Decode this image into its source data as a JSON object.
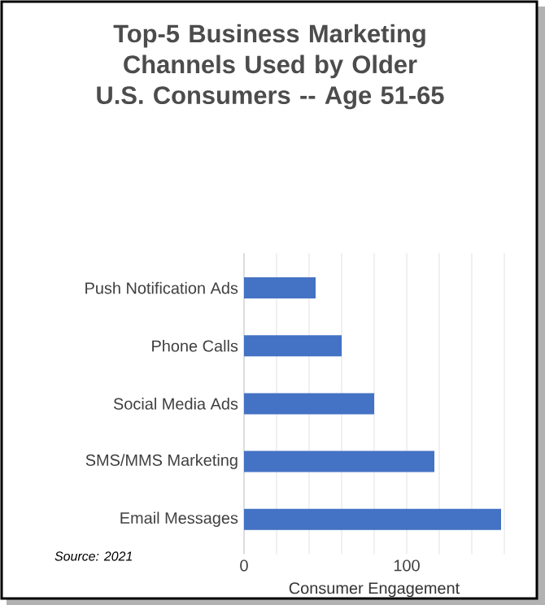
{
  "chart_data": {
    "type": "bar",
    "orientation": "horizontal",
    "title": "Top-5 Business Marketing Channels Used by Older U.S. Consumers -- Age 51-65",
    "categories": [
      "Push Notification Ads",
      "Phone Calls",
      "Social Media Ads",
      "SMS/MMS Marketing",
      "Email Messages"
    ],
    "values": [
      44,
      60,
      80,
      117,
      158
    ],
    "color": "#4472c4",
    "xlim": [
      0,
      160
    ],
    "xticks": [
      0,
      {
        "value": 20,
        "label": null
      },
      {
        "value": 40,
        "label": null
      },
      {
        "value": 60,
        "label": null
      },
      {
        "value": 80,
        "label": null
      },
      100,
      {
        "value": 120,
        "label": null
      },
      {
        "value": 140,
        "label": null
      },
      {
        "value": 160,
        "label": null
      }
    ],
    "xlabel": "Consumer Engagement",
    "grid": "x",
    "annotations": [
      "Source: 2021"
    ]
  }
}
